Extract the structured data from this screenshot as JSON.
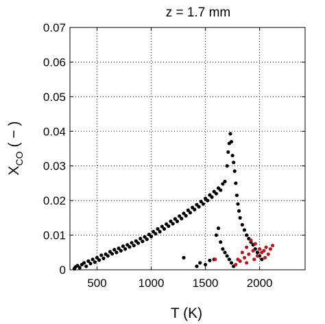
{
  "chart_data": {
    "type": "scatter",
    "title": "z = 1.7 mm",
    "xlabel_text": "T (K)",
    "ylabel_main": "X",
    "ylabel_sub": "CO",
    "ylabel_tail": "( − )",
    "xlim": [
      250,
      2420
    ],
    "ylim": [
      0,
      0.07
    ],
    "x_ticks": [
      500,
      1000,
      1500,
      2000
    ],
    "x_tick_labels": [
      "500",
      "1000",
      "1500",
      "2000"
    ],
    "y_ticks": [
      0,
      0.01,
      0.02,
      0.03,
      0.04,
      0.05,
      0.06,
      0.07
    ],
    "y_tick_labels": [
      "0",
      "0.01",
      "0.02",
      "0.03",
      "0.04",
      "0.05",
      "0.06",
      "0.07"
    ],
    "grid": true,
    "grid_style": "dotted",
    "series": [
      {
        "color": "#000000",
        "points": [
          [
            290,
            0.0003
          ],
          [
            300,
            0.0008
          ],
          [
            320,
            0.0012
          ],
          [
            340,
            0.0006
          ],
          [
            360,
            0.0015
          ],
          [
            380,
            0.002
          ],
          [
            400,
            0.001
          ],
          [
            420,
            0.0025
          ],
          [
            440,
            0.0018
          ],
          [
            460,
            0.003
          ],
          [
            480,
            0.0022
          ],
          [
            500,
            0.0035
          ],
          [
            520,
            0.0028
          ],
          [
            540,
            0.0042
          ],
          [
            560,
            0.0033
          ],
          [
            580,
            0.0045
          ],
          [
            600,
            0.004
          ],
          [
            620,
            0.0052
          ],
          [
            640,
            0.0046
          ],
          [
            660,
            0.0058
          ],
          [
            680,
            0.005
          ],
          [
            700,
            0.0062
          ],
          [
            720,
            0.0055
          ],
          [
            740,
            0.0068
          ],
          [
            760,
            0.006
          ],
          [
            780,
            0.0072
          ],
          [
            800,
            0.0066
          ],
          [
            820,
            0.0078
          ],
          [
            840,
            0.007
          ],
          [
            860,
            0.0083
          ],
          [
            880,
            0.0077
          ],
          [
            900,
            0.009
          ],
          [
            920,
            0.0082
          ],
          [
            940,
            0.0095
          ],
          [
            960,
            0.0088
          ],
          [
            980,
            0.0102
          ],
          [
            1000,
            0.0096
          ],
          [
            1020,
            0.011
          ],
          [
            1040,
            0.0104
          ],
          [
            1060,
            0.0118
          ],
          [
            1080,
            0.011
          ],
          [
            1100,
            0.0125
          ],
          [
            1120,
            0.0118
          ],
          [
            1140,
            0.0132
          ],
          [
            1160,
            0.0126
          ],
          [
            1180,
            0.014
          ],
          [
            1200,
            0.0133
          ],
          [
            1220,
            0.0147
          ],
          [
            1240,
            0.014
          ],
          [
            1260,
            0.0155
          ],
          [
            1280,
            0.0148
          ],
          [
            1300,
            0.0163
          ],
          [
            1320,
            0.0156
          ],
          [
            1340,
            0.0172
          ],
          [
            1360,
            0.0165
          ],
          [
            1380,
            0.018
          ],
          [
            1400,
            0.0174
          ],
          [
            1420,
            0.0188
          ],
          [
            1440,
            0.0182
          ],
          [
            1460,
            0.0197
          ],
          [
            1480,
            0.019
          ],
          [
            1500,
            0.0206
          ],
          [
            1520,
            0.02
          ],
          [
            1540,
            0.0216
          ],
          [
            1560,
            0.021
          ],
          [
            1580,
            0.0226
          ],
          [
            1600,
            0.022
          ],
          [
            1620,
            0.0236
          ],
          [
            1640,
            0.023
          ],
          [
            1660,
            0.0248
          ],
          [
            1680,
            0.0255
          ],
          [
            1700,
            0.03
          ],
          [
            1710,
            0.034
          ],
          [
            1720,
            0.0365
          ],
          [
            1730,
            0.0393
          ],
          [
            1740,
            0.037
          ],
          [
            1750,
            0.033
          ],
          [
            1760,
            0.031
          ],
          [
            1770,
            0.0285
          ],
          [
            1780,
            0.025
          ],
          [
            1790,
            0.0215
          ],
          [
            1800,
            0.019
          ],
          [
            1810,
            0.017
          ],
          [
            1820,
            0.015
          ],
          [
            1840,
            0.013
          ],
          [
            1860,
            0.0115
          ],
          [
            1880,
            0.01
          ],
          [
            1900,
            0.009
          ],
          [
            1920,
            0.008
          ],
          [
            1940,
            0.0072
          ],
          [
            1960,
            0.006
          ],
          [
            1980,
            0.005
          ],
          [
            2000,
            0.004
          ],
          [
            2020,
            0.003
          ],
          [
            1540,
            0.0027
          ],
          [
            1580,
            0.003
          ],
          [
            1600,
            0.01
          ],
          [
            1620,
            0.012
          ],
          [
            1640,
            0.008
          ],
          [
            1660,
            0.006
          ],
          [
            1680,
            0.005
          ],
          [
            1700,
            0.004
          ],
          [
            1720,
            0.003
          ],
          [
            1740,
            0.002
          ],
          [
            1760,
            0.001
          ],
          [
            1300,
            0.0035
          ],
          [
            1420,
            0.001
          ],
          [
            1450,
            0.002
          ],
          [
            1500,
            0.0015
          ]
        ]
      },
      {
        "color": "#b8191f",
        "points": [
          [
            1780,
            0.0015
          ],
          [
            1800,
            0.003
          ],
          [
            1820,
            0.0025
          ],
          [
            1840,
            0.005
          ],
          [
            1860,
            0.0035
          ],
          [
            1880,
            0.0065
          ],
          [
            1900,
            0.0045
          ],
          [
            1920,
            0.0085
          ],
          [
            1940,
            0.0055
          ],
          [
            1960,
            0.0075
          ],
          [
            1980,
            0.004
          ],
          [
            2000,
            0.006
          ],
          [
            2020,
            0.005
          ],
          [
            2040,
            0.0055
          ],
          [
            2060,
            0.0065
          ],
          [
            2080,
            0.0045
          ],
          [
            2100,
            0.006
          ],
          [
            2120,
            0.007
          ],
          [
            1590,
            0.003
          ],
          [
            1880,
            0.002
          ],
          [
            1950,
            0.003
          ],
          [
            2050,
            0.0035
          ]
        ]
      }
    ]
  }
}
